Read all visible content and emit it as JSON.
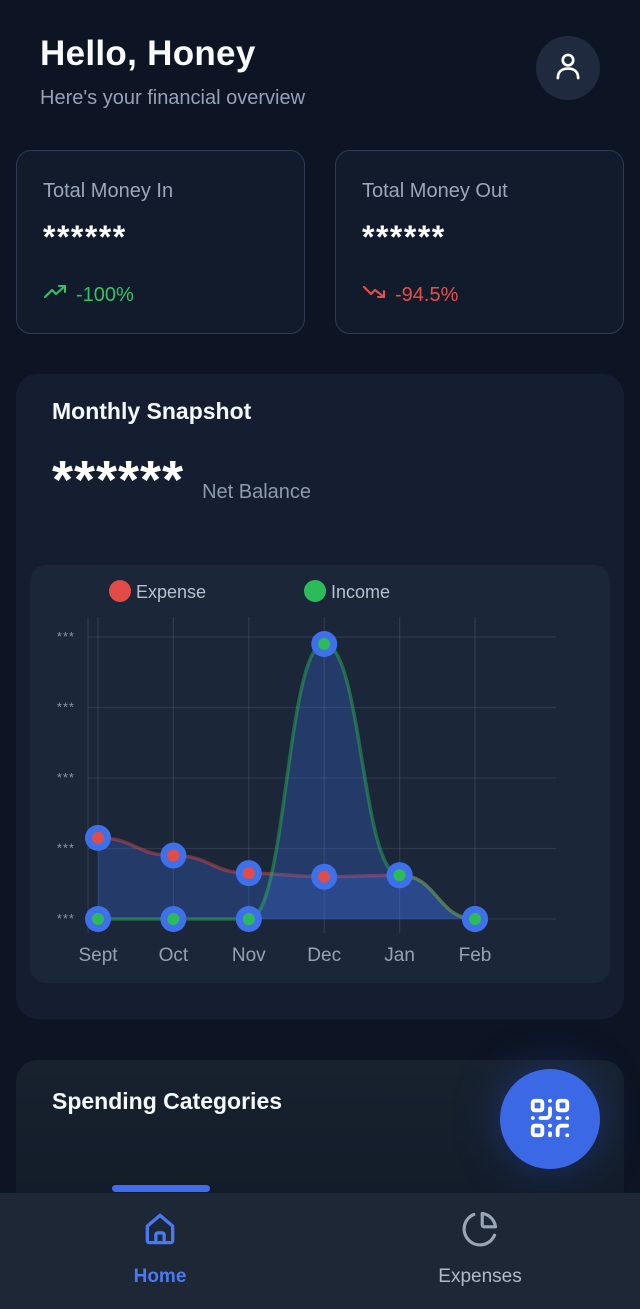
{
  "header": {
    "greeting": "Hello, Honey",
    "subtitle": "Here's your financial overview",
    "avatar_icon": "person-icon"
  },
  "summary_cards": [
    {
      "label": "Total Money In",
      "masked_value": "******",
      "trend": "-100%",
      "trend_direction": "up",
      "trend_color": "#32c264",
      "trend_icon": "trending-up-icon"
    },
    {
      "label": "Total Money Out",
      "masked_value": "******",
      "trend": "-94.5%",
      "trend_direction": "down",
      "trend_color": "#e2504b",
      "trend_icon": "trending-down-icon"
    }
  ],
  "monthly_snapshot": {
    "title": "Monthly Snapshot",
    "masked_balance": "******",
    "balance_label": "Net Balance"
  },
  "chart_data": {
    "type": "area",
    "title": "",
    "categories": [
      "Sept",
      "Oct",
      "Nov",
      "Dec",
      "Jan",
      "Feb"
    ],
    "series": [
      {
        "name": "Expense",
        "color": "#e14b48",
        "values": [
          1.15,
          0.9,
          0.65,
          0.6,
          0.62,
          0
        ]
      },
      {
        "name": "Income",
        "color": "#2dbb59",
        "values": [
          0,
          0,
          0,
          3.9,
          0.62,
          0
        ]
      }
    ],
    "y_tick_labels": [
      "***",
      "***",
      "***",
      "***",
      "***"
    ],
    "values_masked": true,
    "ylim": [
      0,
      4
    ],
    "grid": true,
    "legend_position": "top-inside",
    "style": {
      "point_ring_color": "#3e71e9",
      "area_fill": "rgba(62,110,230,0.28)",
      "line_opacity": 0.45,
      "grid_color": "rgba(148,160,180,0.16)",
      "tick_color": "#8a95a8",
      "x_label_color": "#96a2b4",
      "legend_text_color": "#b7c1ce"
    }
  },
  "spending": {
    "title": "Spending Categories",
    "action_icon": "qr-code-icon"
  },
  "bottom_nav": {
    "items": [
      {
        "label": "Home",
        "icon": "home-icon",
        "active": true
      },
      {
        "label": "Expenses",
        "icon": "pie-chart-icon",
        "active": false
      }
    ]
  },
  "colors": {
    "accent_blue": "#3f6cf0",
    "positive_green": "#32c264",
    "negative_red": "#e2504b",
    "background": "#0d1524"
  }
}
